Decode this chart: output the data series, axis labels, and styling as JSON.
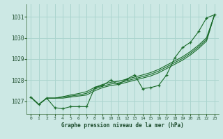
{
  "bg_color": "#cce8e4",
  "grid_color": "#aad4ce",
  "line_color": "#1a6b2a",
  "xlabel": "Graphe pression niveau de la mer (hPa)",
  "x_ticks": [
    0,
    1,
    2,
    3,
    4,
    5,
    6,
    7,
    8,
    9,
    10,
    11,
    12,
    13,
    14,
    15,
    16,
    17,
    18,
    19,
    20,
    21,
    22,
    23
  ],
  "ylim": [
    1026.4,
    1031.6
  ],
  "xlim": [
    -0.5,
    23.5
  ],
  "yticks": [
    1027,
    1028,
    1029,
    1030,
    1031
  ],
  "main_data": [
    1027.2,
    1026.85,
    1027.15,
    1026.7,
    1026.65,
    1026.75,
    1026.75,
    1026.75,
    1027.65,
    1027.75,
    1028.0,
    1027.8,
    1028.05,
    1028.25,
    1027.6,
    1027.65,
    1027.75,
    1028.25,
    1029.05,
    1029.55,
    1029.8,
    1030.3,
    1030.95,
    1031.1
  ],
  "line2_data": [
    1027.2,
    1026.85,
    1027.15,
    1027.15,
    1027.15,
    1027.2,
    1027.25,
    1027.3,
    1027.5,
    1027.65,
    1027.75,
    1027.8,
    1027.9,
    1028.0,
    1028.1,
    1028.2,
    1028.35,
    1028.55,
    1028.75,
    1028.95,
    1029.2,
    1029.5,
    1029.85,
    1031.1
  ],
  "line3_data": [
    1027.2,
    1026.85,
    1027.15,
    1027.15,
    1027.2,
    1027.25,
    1027.3,
    1027.38,
    1027.58,
    1027.72,
    1027.82,
    1027.87,
    1027.97,
    1028.07,
    1028.17,
    1028.28,
    1028.43,
    1028.63,
    1028.83,
    1029.03,
    1029.28,
    1029.58,
    1029.93,
    1031.1
  ],
  "line4_data": [
    1027.2,
    1026.85,
    1027.15,
    1027.15,
    1027.22,
    1027.3,
    1027.37,
    1027.46,
    1027.66,
    1027.8,
    1027.9,
    1027.95,
    1028.05,
    1028.15,
    1028.25,
    1028.36,
    1028.51,
    1028.71,
    1028.91,
    1029.11,
    1029.36,
    1029.66,
    1030.01,
    1031.1
  ]
}
